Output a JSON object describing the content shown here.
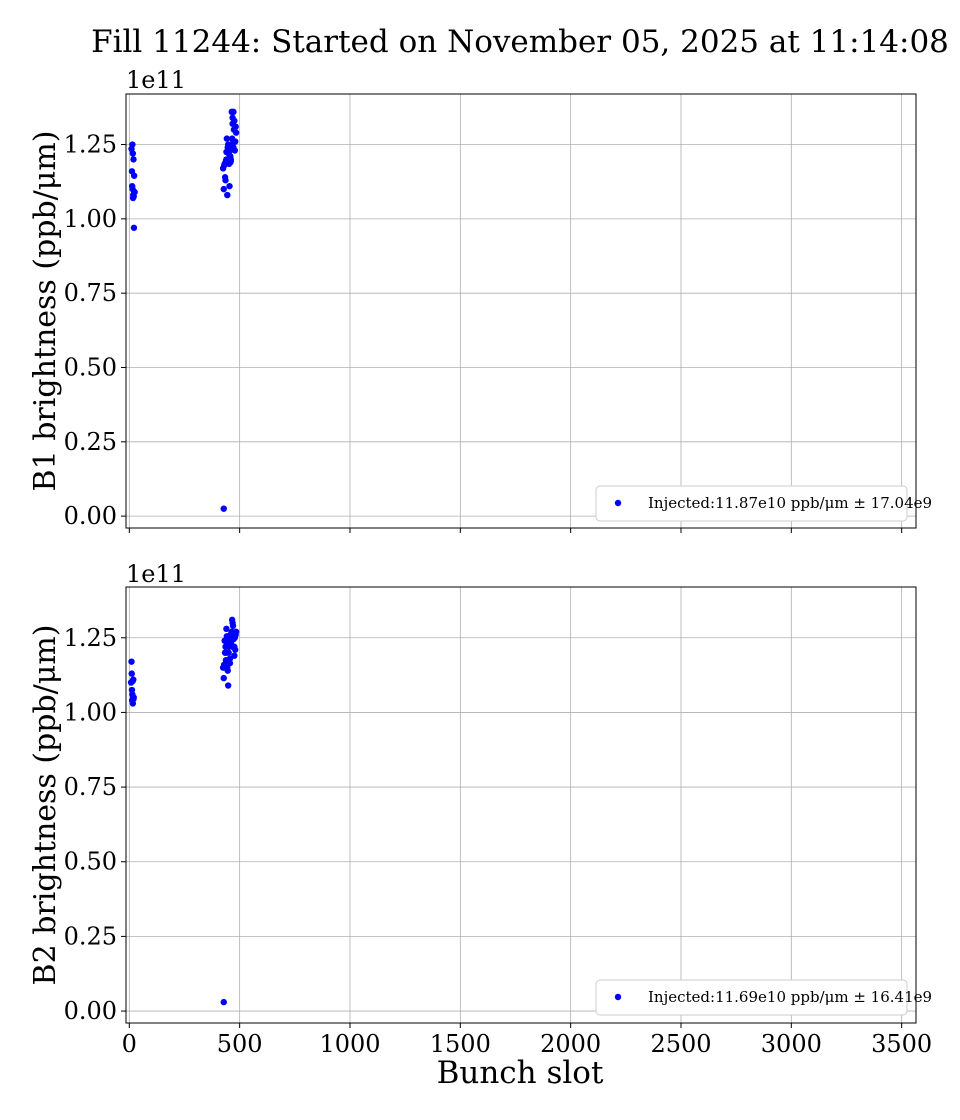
{
  "chart_data": {
    "type": "scatter",
    "title": "Fill 11244: Started on November 05, 2025 at 11:14:08",
    "xlabel": "Bunch slot",
    "xlim": [
      -15,
      3565
    ],
    "xticks": [
      0,
      500,
      1000,
      1500,
      2000,
      2500,
      3000,
      3500
    ],
    "grid": true,
    "point_color": "#0000ff",
    "legend_placement": "lower-right",
    "panels": [
      {
        "ylabel": "B1 brightness (ppb/μm)",
        "offset_text": "1e11",
        "ylim": [
          -0.04,
          1.42
        ],
        "yticks": [
          "0.00",
          "0.25",
          "0.50",
          "0.75",
          "1.00",
          "1.25"
        ],
        "legend": "Injected:11.87e10 ppb/μm ± 17.04e9",
        "series": [
          {
            "name": "Injected:11.87e10 ppb/μm ± 17.04e9",
            "x": [
              10,
              12,
              13,
              14,
              15,
              16,
              17,
              18,
              19,
              20,
              21,
              22,
              23,
              24,
              425,
              428,
              430,
              432,
              434,
              436,
              438,
              440,
              442,
              444,
              446,
              448,
              450,
              452,
              454,
              456,
              458,
              460,
              462,
              464,
              466,
              468,
              470,
              472,
              474,
              476,
              478,
              480,
              482,
              484,
              446,
              458,
              440,
              468,
              472,
              460,
              428
            ],
            "y": [
              1.235,
              1.16,
              1.11,
              1.25,
              1.1,
              1.22,
              1.07,
              1.08,
              1.2,
              1.075,
              0.97,
              1.145,
              1.09,
              1.09,
              1.17,
              1.1,
              1.18,
              1.185,
              1.14,
              1.13,
              1.195,
              1.225,
              1.27,
              1.08,
              1.2,
              1.25,
              1.22,
              1.185,
              1.11,
              1.23,
              1.21,
              1.195,
              1.25,
              1.36,
              1.27,
              1.32,
              1.255,
              1.36,
              1.3,
              1.33,
              1.23,
              1.26,
              1.31,
              1.29,
              1.24,
              1.19,
              1.2,
              1.34,
              1.24,
              1.2,
              0.025
            ]
          }
        ]
      },
      {
        "ylabel": "B2 brightness (ppb/μm)",
        "offset_text": "1e11",
        "ylim": [
          -0.04,
          1.42
        ],
        "yticks": [
          "0.00",
          "0.25",
          "0.50",
          "0.75",
          "1.00",
          "1.25"
        ],
        "legend": "Injected:11.69e10 ppb/μm ± 16.41e9",
        "series": [
          {
            "name": "Injected:11.69e10 ppb/μm ± 16.41e9",
            "x": [
              8,
              10,
              11,
              12,
              13,
              14,
              15,
              16,
              17,
              18,
              19,
              20,
              425,
              428,
              430,
              432,
              434,
              436,
              438,
              440,
              442,
              444,
              446,
              448,
              450,
              452,
              454,
              456,
              458,
              460,
              462,
              464,
              466,
              468,
              470,
              472,
              474,
              476,
              478,
              480,
              482,
              484,
              444,
              456,
              468,
              476,
              438,
              428
            ],
            "y": [
              1.1,
              1.17,
              1.13,
              1.075,
              1.04,
              1.06,
              1.105,
              1.03,
              1.05,
              1.11,
              1.045,
              1.05,
              1.15,
              1.115,
              1.16,
              1.24,
              1.2,
              1.22,
              1.175,
              1.28,
              1.255,
              1.15,
              1.14,
              1.09,
              1.2,
              1.22,
              1.25,
              1.165,
              1.26,
              1.23,
              1.24,
              1.27,
              1.31,
              1.22,
              1.29,
              1.245,
              1.255,
              1.19,
              1.25,
              1.21,
              1.26,
              1.27,
              1.23,
              1.18,
              1.3,
              1.22,
              1.2,
              0.03
            ]
          }
        ]
      }
    ]
  }
}
